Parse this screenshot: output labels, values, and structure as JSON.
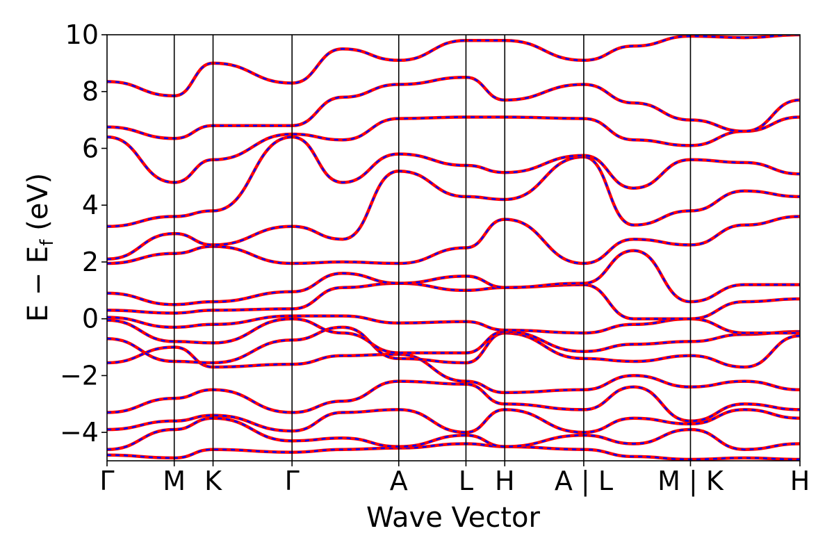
{
  "chart_data": {
    "type": "line",
    "title": "",
    "xlabel": "Wave Vector",
    "ylabel_main": "E − E",
    "ylabel_sub": "f",
    "ylabel_unit": " (eV)",
    "ylim": [
      -5,
      10
    ],
    "yticks": [
      -4,
      -2,
      0,
      2,
      4,
      6,
      8,
      10
    ],
    "ytick_labels": [
      "−4",
      "−2",
      "0",
      "2",
      "4",
      "6",
      "8",
      "10"
    ],
    "grid": false,
    "legend": "none",
    "colors": {
      "dft": "#ff0000",
      "wannier": "#0000ff",
      "axes": "#000000"
    },
    "x_range": [
      0,
      10
    ],
    "high_symmetry_points": [
      {
        "label": "Γ",
        "x": 0.0
      },
      {
        "label": "M",
        "x": 0.97
      },
      {
        "label": "K",
        "x": 1.53
      },
      {
        "label": "Γ",
        "x": 2.67
      },
      {
        "label": "A",
        "x": 4.21
      },
      {
        "label": "L",
        "x": 5.18
      },
      {
        "label": "H",
        "x": 5.74
      },
      {
        "label": "A | L",
        "x": 6.88
      },
      {
        "label": "M | K",
        "x": 8.42
      },
      {
        "label": "H",
        "x": 10.0
      }
    ],
    "segments": [
      {
        "from": "Γ",
        "to": "M",
        "x": [
          0.0,
          0.97
        ]
      },
      {
        "from": "M",
        "to": "K",
        "x": [
          0.97,
          1.53
        ]
      },
      {
        "from": "K",
        "to": "Γ",
        "x": [
          1.53,
          2.67
        ]
      },
      {
        "from": "Γ",
        "to": "A",
        "x": [
          2.67,
          4.21
        ]
      },
      {
        "from": "A",
        "to": "L",
        "x": [
          4.21,
          5.18
        ]
      },
      {
        "from": "L",
        "to": "H",
        "x": [
          5.18,
          5.74
        ]
      },
      {
        "from": "H",
        "to": "A",
        "x": [
          5.74,
          6.88
        ]
      },
      {
        "from": "L",
        "to": "M",
        "x": [
          6.88,
          8.42
        ]
      },
      {
        "from": "K",
        "to": "H",
        "x": [
          8.42,
          10.0
        ]
      }
    ],
    "series": [
      {
        "x": [
          0,
          0.97,
          1.53,
          2.67,
          3.4,
          4.21,
          5.18,
          5.74,
          6.88,
          7.6,
          8.42,
          9.2,
          10
        ],
        "y": [
          -4.8,
          -4.9,
          -4.6,
          -4.7,
          -4.6,
          -4.55,
          -4.4,
          -4.5,
          -4.6,
          -4.85,
          -4.95,
          -4.9,
          -4.95
        ]
      },
      {
        "x": [
          0,
          0.97,
          1.53,
          2.67,
          3.4,
          4.21,
          5.18,
          5.74,
          6.88,
          7.6,
          8.42,
          9.2,
          10
        ],
        "y": [
          -4.6,
          -3.9,
          -3.5,
          -4.3,
          -4.2,
          -4.5,
          -4.1,
          -4.5,
          -4.1,
          -4.4,
          -3.9,
          -4.6,
          -4.4
        ]
      },
      {
        "x": [
          0,
          0.97,
          1.53,
          2.67,
          3.4,
          4.21,
          5.18,
          5.74,
          6.88,
          7.6,
          8.42,
          9.2,
          10
        ],
        "y": [
          -3.9,
          -3.6,
          -3.4,
          -3.95,
          -3.3,
          -3.2,
          -4.0,
          -3.2,
          -4.0,
          -3.5,
          -3.7,
          -3.2,
          -3.5
        ]
      },
      {
        "x": [
          0,
          0.97,
          1.53,
          2.67,
          3.4,
          4.21,
          5.18,
          5.74,
          6.88,
          7.6,
          8.42,
          9.2,
          10
        ],
        "y": [
          -3.3,
          -2.8,
          -2.5,
          -3.3,
          -2.9,
          -2.2,
          -2.3,
          -3.0,
          -3.2,
          -2.4,
          -3.6,
          -3.0,
          -3.2
        ]
      },
      {
        "x": [
          0,
          0.97,
          1.53,
          2.67,
          3.4,
          4.21,
          5.18,
          5.74,
          6.88,
          7.6,
          8.42,
          9.2,
          10
        ],
        "y": [
          -1.55,
          -1.0,
          -1.7,
          -1.6,
          -1.3,
          -1.25,
          -2.2,
          -2.6,
          -2.5,
          -2.0,
          -2.4,
          -2.2,
          -2.5
        ]
      },
      {
        "x": [
          0,
          0.97,
          1.53,
          2.67,
          3.4,
          4.21,
          5.18,
          5.74,
          6.88,
          7.6,
          8.42,
          9.2,
          10
        ],
        "y": [
          -0.7,
          -1.5,
          -1.55,
          -0.75,
          -0.3,
          -1.4,
          -1.55,
          -0.5,
          -1.4,
          -1.5,
          -1.3,
          -1.7,
          -0.6
        ]
      },
      {
        "x": [
          0,
          0.97,
          1.53,
          2.67,
          3.4,
          4.21,
          5.18,
          5.74,
          6.88,
          7.6,
          8.42,
          9.2,
          10
        ],
        "y": [
          -0.05,
          -0.8,
          -0.85,
          -0.0,
          -0.5,
          -1.2,
          -1.2,
          -0.45,
          -1.15,
          -0.9,
          -0.8,
          -0.55,
          -0.45
        ]
      },
      {
        "x": [
          0,
          0.97,
          1.53,
          2.67,
          3.4,
          4.21,
          5.18,
          5.74,
          6.88,
          7.6,
          8.42,
          9.2,
          10
        ],
        "y": [
          0.05,
          -0.3,
          -0.2,
          0.1,
          0.1,
          -0.15,
          -0.1,
          -0.4,
          -0.5,
          -0.2,
          0.0,
          -0.5,
          -0.5
        ]
      },
      {
        "x": [
          0,
          0.97,
          1.53,
          2.67,
          3.4,
          4.21,
          5.18,
          5.74,
          6.88,
          7.6,
          8.42,
          9.2,
          10
        ],
        "y": [
          0.3,
          0.2,
          0.3,
          0.35,
          1.1,
          1.25,
          1.0,
          1.1,
          1.2,
          0.0,
          0.0,
          0.6,
          0.7
        ]
      },
      {
        "x": [
          0,
          0.97,
          1.53,
          2.67,
          3.4,
          4.21,
          5.18,
          5.74,
          6.88,
          7.6,
          8.42,
          9.2,
          10
        ],
        "y": [
          0.9,
          0.5,
          0.6,
          0.95,
          1.6,
          1.25,
          1.5,
          1.1,
          1.25,
          2.4,
          0.6,
          1.2,
          1.2
        ]
      },
      {
        "x": [
          0,
          0.97,
          1.53,
          2.67,
          3.4,
          4.21,
          5.18,
          5.74,
          6.88,
          7.6,
          8.42,
          9.2,
          10
        ],
        "y": [
          1.95,
          2.3,
          2.55,
          1.95,
          2.0,
          1.95,
          2.5,
          3.5,
          1.95,
          2.8,
          2.6,
          3.3,
          3.6
        ]
      },
      {
        "x": [
          0,
          0.97,
          1.53,
          2.67,
          3.4,
          4.21,
          5.18,
          5.74,
          6.88,
          7.6,
          8.42,
          9.2,
          10
        ],
        "y": [
          2.1,
          3.0,
          2.6,
          3.25,
          2.8,
          5.2,
          4.3,
          4.2,
          5.7,
          3.3,
          3.8,
          4.5,
          4.3
        ]
      },
      {
        "x": [
          0,
          0.97,
          1.53,
          2.67,
          3.4,
          4.21,
          5.18,
          5.74,
          6.88,
          7.6,
          8.42,
          9.2,
          10
        ],
        "y": [
          3.25,
          3.6,
          3.8,
          6.4,
          4.8,
          5.8,
          5.4,
          5.15,
          5.75,
          4.6,
          5.6,
          5.5,
          5.1
        ]
      },
      {
        "x": [
          0,
          0.97,
          1.53,
          2.67,
          3.4,
          4.21,
          5.18,
          5.74,
          6.88,
          7.6,
          8.42,
          9.2,
          10
        ],
        "y": [
          6.4,
          4.8,
          5.6,
          6.5,
          6.3,
          7.05,
          7.1,
          7.1,
          7.05,
          6.3,
          6.1,
          6.6,
          7.1
        ]
      },
      {
        "x": [
          0,
          0.97,
          1.53,
          2.67,
          3.4,
          4.21,
          5.18,
          5.74,
          6.88,
          7.6,
          8.42,
          9.2,
          10
        ],
        "y": [
          6.75,
          6.35,
          6.8,
          6.8,
          7.8,
          8.25,
          8.5,
          7.7,
          8.25,
          7.6,
          7.0,
          6.6,
          7.7
        ]
      },
      {
        "x": [
          0,
          0.97,
          1.53,
          2.67,
          3.4,
          4.21,
          5.18,
          5.74,
          6.88,
          7.6,
          8.42,
          9.2,
          10
        ],
        "y": [
          8.35,
          7.85,
          9.0,
          8.3,
          9.5,
          9.1,
          9.8,
          9.8,
          9.1,
          9.6,
          9.95,
          9.9,
          10.0
        ]
      }
    ]
  }
}
